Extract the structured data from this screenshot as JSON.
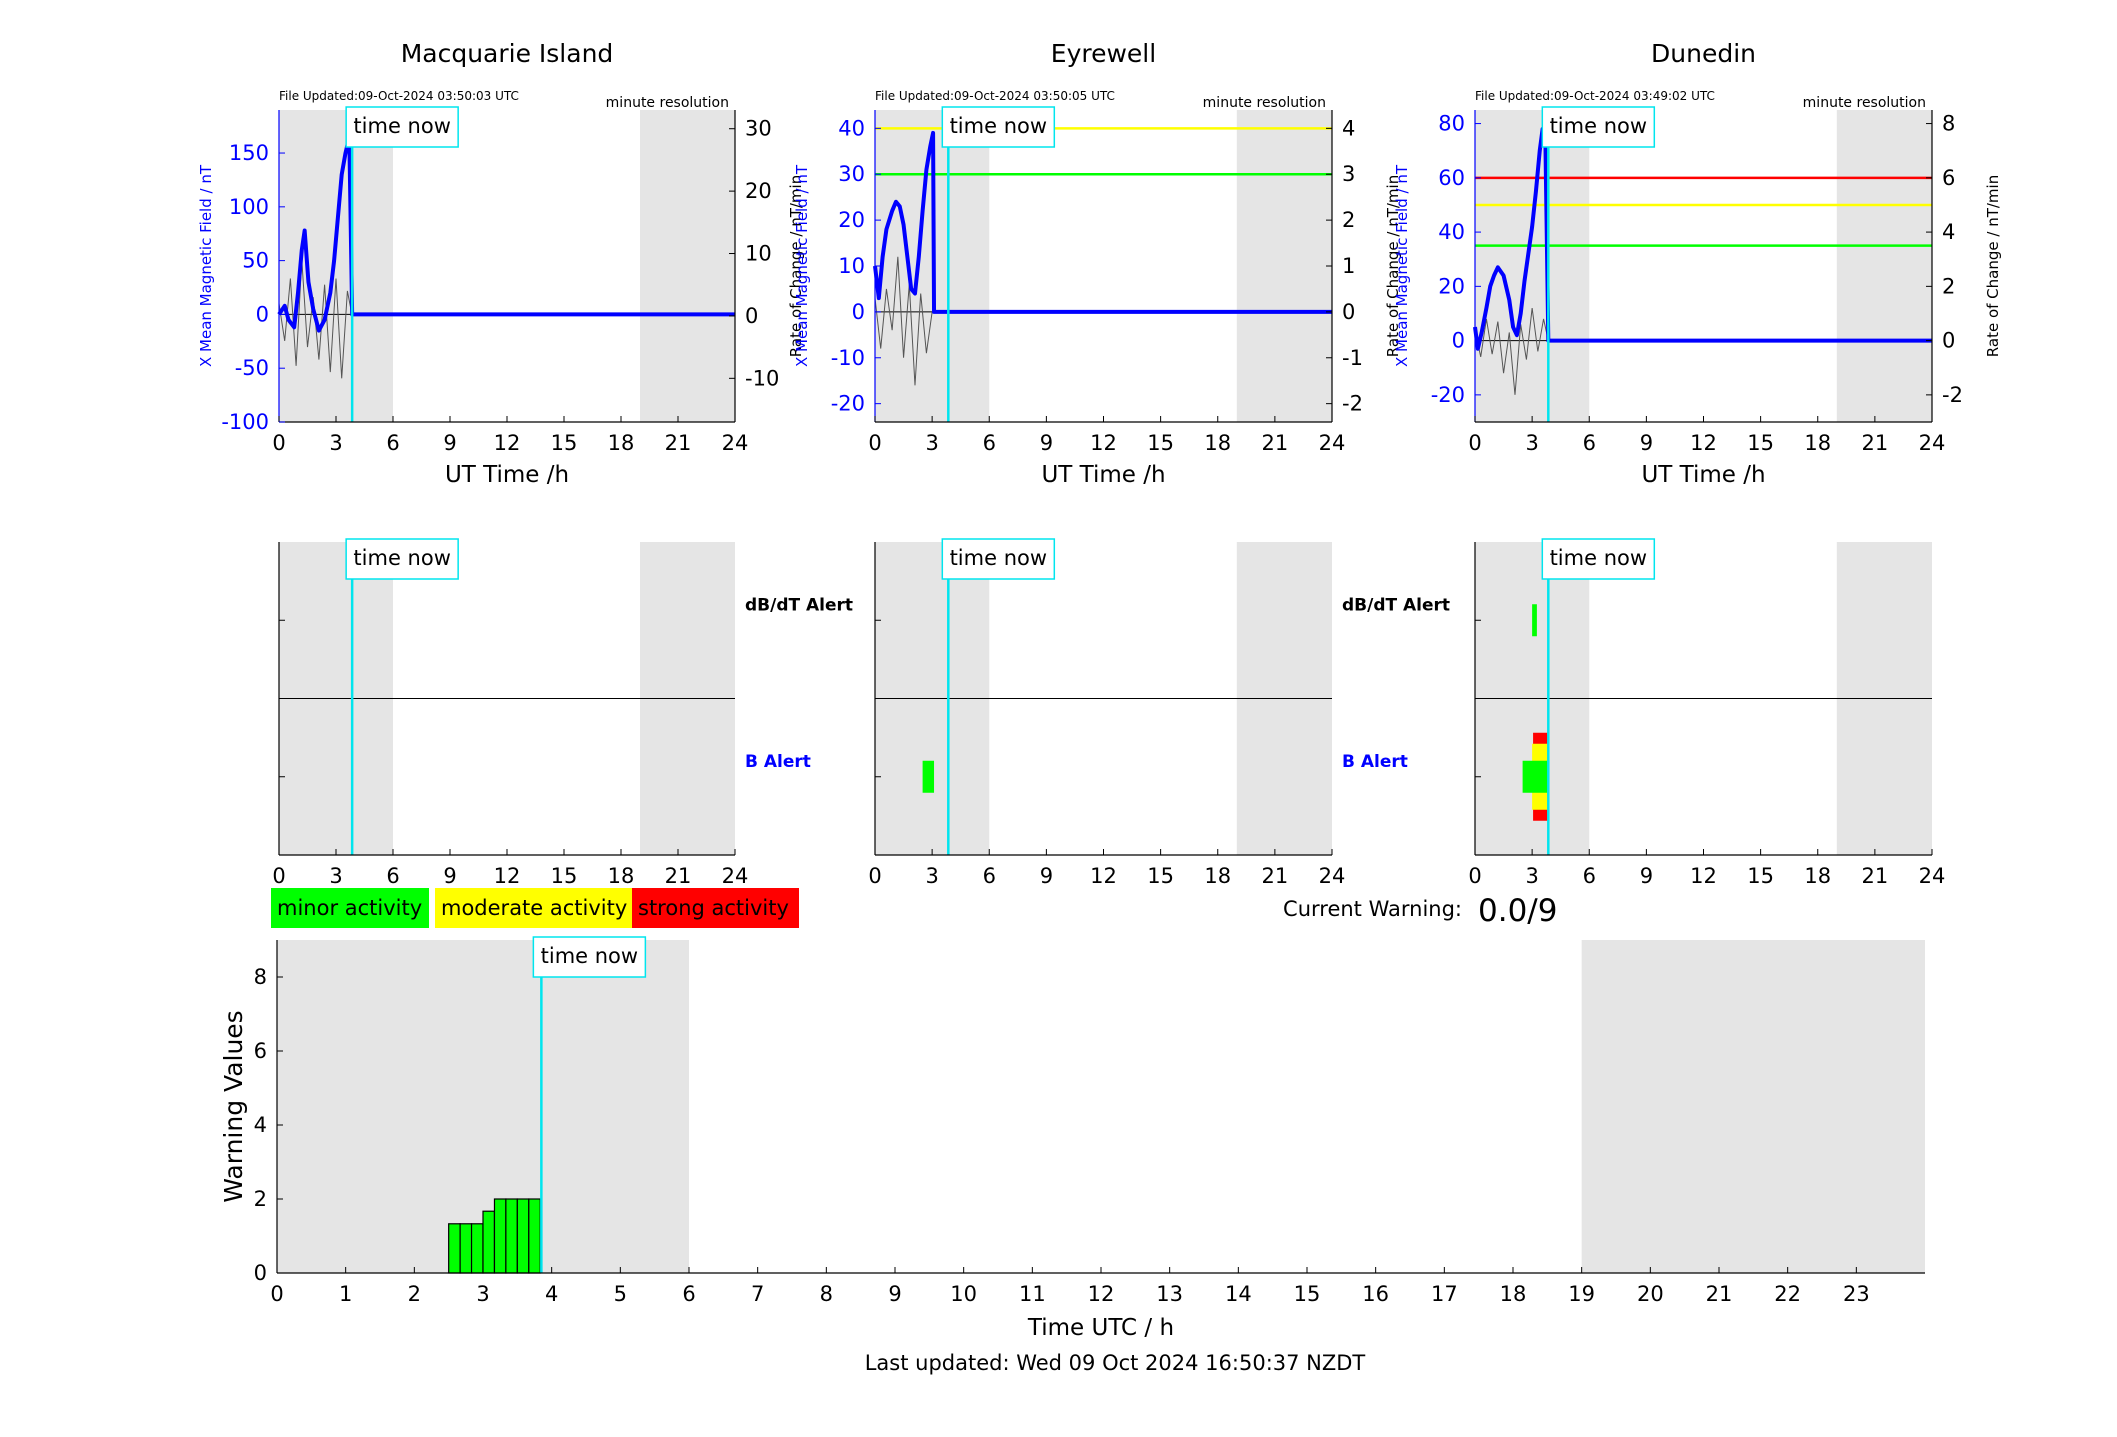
{
  "colors": {
    "primary_axis": "#0000ff",
    "now_line": "#00e5ee",
    "night_shade": "#e5e5e5",
    "minor": "#00ff00",
    "moderate": "#ffff00",
    "strong": "#ff0000",
    "rate_trace": "#555555"
  },
  "common": {
    "time_now_label": "time now",
    "minute_resolution": "minute resolution",
    "x_label": "UT Time /h",
    "y_left_label": "X Mean Magnetic Field / nT",
    "y_right_label": "Rate of Change / nT/min",
    "x_ticks": [
      "0",
      "3",
      "6",
      "9",
      "12",
      "15",
      "18",
      "21",
      "24"
    ],
    "dbdt_alert_label": "dB/dT Alert",
    "b_alert_label": "B Alert"
  },
  "legend": {
    "items": [
      {
        "label": "minor activity",
        "color": "#00ff00"
      },
      {
        "label": "moderate activity",
        "color": "#ffff00"
      },
      {
        "label": "strong activity",
        "color": "#ff0000"
      }
    ]
  },
  "current_warning": {
    "label": "Current Warning:",
    "value": "0.0/9"
  },
  "footer": {
    "last_updated": "Last updated: Wed 09 Oct 2024 16:50:37 NZDT"
  },
  "chart_data": [
    {
      "type": "line",
      "title": "Macquarie Island",
      "file_updated": "File Updated:09-Oct-2024 03:50:03 UTC",
      "xlim": [
        0,
        24
      ],
      "ylim": [
        -100,
        190
      ],
      "y2lim": [
        -17,
        33
      ],
      "y_ticks": [
        "-100",
        "-50",
        "0",
        "50",
        "100",
        "150"
      ],
      "y2_ticks": [
        "-10",
        "0",
        "10",
        "20",
        "30"
      ],
      "night_shade": [
        [
          0,
          6
        ],
        [
          19,
          24
        ]
      ],
      "time_now": 3.85,
      "thresholds": [],
      "series": [
        {
          "axis": "left",
          "x": [
            0,
            0.3,
            0.5,
            0.8,
            1.0,
            1.2,
            1.35,
            1.55,
            1.8,
            2.1,
            2.4,
            2.7,
            2.9,
            3.1,
            3.3,
            3.5,
            3.7,
            3.85,
            24
          ],
          "values": [
            0,
            8,
            -5,
            -12,
            20,
            60,
            78,
            30,
            5,
            -15,
            -5,
            20,
            50,
            90,
            130,
            150,
            165,
            0,
            0
          ]
        },
        {
          "axis": "right",
          "x": [
            0,
            0.3,
            0.6,
            0.9,
            1.2,
            1.5,
            1.8,
            2.1,
            2.4,
            2.7,
            3.0,
            3.3,
            3.6,
            3.85
          ],
          "values": [
            2,
            -4,
            6,
            -8,
            9,
            -5,
            3,
            -7,
            5,
            -9,
            6,
            -10,
            4,
            0
          ]
        }
      ],
      "alerts": {
        "dbdt": [],
        "b": []
      }
    },
    {
      "type": "line",
      "title": "Eyrewell",
      "file_updated": "File Updated:09-Oct-2024 03:50:05 UTC",
      "xlim": [
        0,
        24
      ],
      "ylim": [
        -24,
        44
      ],
      "y2lim": [
        -2.4,
        4.4
      ],
      "y_ticks": [
        "-20",
        "-10",
        "0",
        "10",
        "20",
        "30",
        "40"
      ],
      "y2_ticks": [
        "-2",
        "-1",
        "0",
        "1",
        "2",
        "3",
        "4"
      ],
      "night_shade": [
        [
          0,
          6
        ],
        [
          19,
          24
        ]
      ],
      "time_now": 3.85,
      "thresholds": [
        {
          "value": 40,
          "color": "#ffff00"
        },
        {
          "value": 30,
          "color": "#00ff00"
        }
      ],
      "series": [
        {
          "axis": "left",
          "x": [
            0,
            0.2,
            0.4,
            0.6,
            0.9,
            1.1,
            1.3,
            1.5,
            1.7,
            1.9,
            2.1,
            2.3,
            2.5,
            2.7,
            2.9,
            3.05,
            3.1,
            24
          ],
          "values": [
            10,
            3,
            12,
            18,
            22,
            24,
            23,
            19,
            12,
            5,
            4,
            12,
            22,
            31,
            36,
            39,
            0,
            0
          ]
        },
        {
          "axis": "right",
          "x": [
            0,
            0.3,
            0.6,
            0.9,
            1.2,
            1.5,
            1.8,
            2.1,
            2.4,
            2.7,
            3.0
          ],
          "values": [
            0.3,
            -0.8,
            0.5,
            -0.4,
            1.2,
            -1.0,
            0.6,
            -1.6,
            0.4,
            -0.9,
            0
          ]
        }
      ],
      "alerts": {
        "dbdt": [],
        "b": [
          {
            "start": 2.5,
            "end": 3.1,
            "level": "minor"
          }
        ]
      }
    },
    {
      "type": "line",
      "title": "Dunedin",
      "file_updated": "File Updated:09-Oct-2024 03:49:02 UTC",
      "xlim": [
        0,
        24
      ],
      "ylim": [
        -30,
        85
      ],
      "y2lim": [
        -3,
        8.5
      ],
      "y_ticks": [
        "-20",
        "0",
        "20",
        "40",
        "60",
        "80"
      ],
      "y2_ticks": [
        "-2",
        "0",
        "2",
        "4",
        "6",
        "8"
      ],
      "night_shade": [
        [
          0,
          6
        ],
        [
          19,
          24
        ]
      ],
      "time_now": 3.85,
      "thresholds": [
        {
          "value": 60,
          "color": "#ff0000"
        },
        {
          "value": 50,
          "color": "#ffff00"
        },
        {
          "value": 35,
          "color": "#00ff00"
        }
      ],
      "series": [
        {
          "axis": "left",
          "x": [
            0,
            0.15,
            0.35,
            0.6,
            0.8,
            1.0,
            1.2,
            1.5,
            1.8,
            2.0,
            2.2,
            2.4,
            2.6,
            2.8,
            3.0,
            3.2,
            3.4,
            3.55,
            3.7,
            3.85,
            24
          ],
          "values": [
            5,
            -3,
            3,
            12,
            20,
            24,
            27,
            24,
            15,
            5,
            2,
            10,
            22,
            32,
            42,
            55,
            70,
            78,
            72,
            0,
            0
          ]
        },
        {
          "axis": "right",
          "x": [
            0,
            0.3,
            0.6,
            0.9,
            1.2,
            1.5,
            1.8,
            2.1,
            2.4,
            2.7,
            3.0,
            3.3,
            3.6,
            3.85
          ],
          "values": [
            0.4,
            -0.6,
            0.8,
            -0.5,
            0.7,
            -1.2,
            0.3,
            -2.0,
            0.6,
            -0.7,
            1.2,
            -0.4,
            0.8,
            0
          ]
        }
      ],
      "alerts": {
        "dbdt": [
          {
            "start": 3.0,
            "end": 3.25,
            "level": "minor"
          }
        ],
        "b": [
          {
            "start": 2.5,
            "end": 3.9,
            "level": "minor"
          },
          {
            "start": 3.0,
            "end": 3.8,
            "level": "moderate"
          },
          {
            "start": 3.05,
            "end": 3.85,
            "level": "strong"
          }
        ]
      }
    },
    {
      "type": "bar",
      "title": "",
      "xlabel": "Time UTC / h",
      "ylabel": "Warning Values",
      "xlim": [
        0,
        24
      ],
      "ylim": [
        0,
        9
      ],
      "x_ticks": [
        "0",
        "1",
        "2",
        "3",
        "4",
        "5",
        "6",
        "7",
        "8",
        "9",
        "10",
        "11",
        "12",
        "13",
        "14",
        "15",
        "16",
        "17",
        "18",
        "19",
        "20",
        "21",
        "22",
        "23"
      ],
      "y_ticks": [
        "0",
        "2",
        "4",
        "6",
        "8"
      ],
      "night_shade": [
        [
          0,
          6
        ],
        [
          19,
          24
        ]
      ],
      "time_now": 3.85,
      "bar_width_h": 0.1667,
      "x": [
        2.5,
        2.667,
        2.833,
        3.0,
        3.167,
        3.333,
        3.5,
        3.667
      ],
      "values": [
        1.33,
        1.33,
        1.33,
        1.67,
        2.0,
        2.0,
        2.0,
        2.0
      ]
    }
  ]
}
